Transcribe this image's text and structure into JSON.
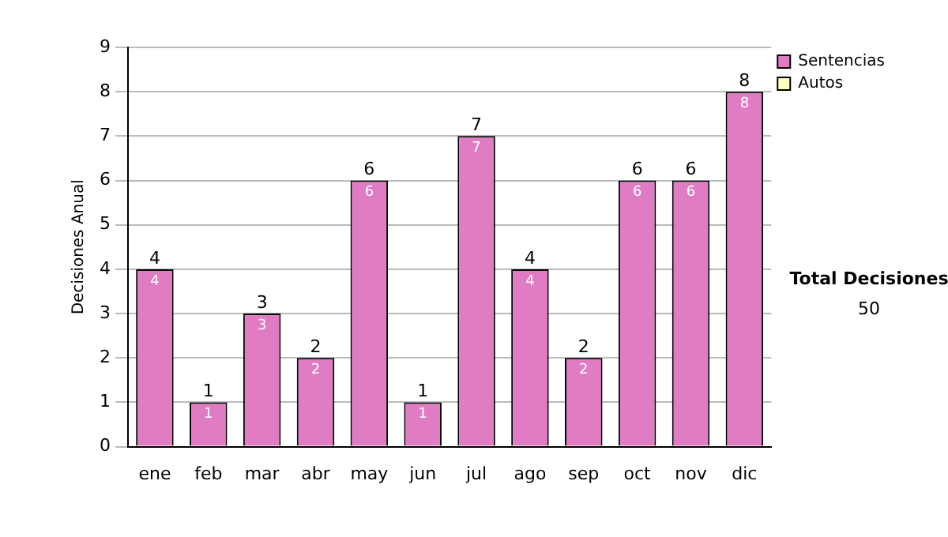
{
  "chart_data": {
    "type": "bar",
    "stacked": true,
    "ylabel": "Decisiones Anual",
    "categories": [
      "ene",
      "feb",
      "mar",
      "abr",
      "may",
      "jun",
      "jul",
      "ago",
      "sep",
      "oct",
      "nov",
      "dic"
    ],
    "series": [
      {
        "name": "Sentencias",
        "color": "#e07cc4",
        "values": [
          4,
          1,
          3,
          2,
          6,
          1,
          7,
          4,
          2,
          6,
          6,
          8
        ],
        "value_labels": [
          "4",
          "1",
          "3",
          "2",
          "6",
          "1",
          "7",
          "4",
          "2",
          "6",
          "6",
          "8"
        ]
      },
      {
        "name": "Autos",
        "color": "#ffffc0",
        "values": [
          0,
          0,
          0,
          0,
          0,
          0,
          0,
          0,
          0,
          0,
          0,
          0
        ]
      }
    ],
    "totals": [
      "4",
      "1",
      "3",
      "2",
      "6",
      "1",
      "7",
      "4",
      "2",
      "6",
      "6",
      "8"
    ],
    "ylim": [
      0,
      9
    ],
    "yticks": [
      0,
      1,
      2,
      3,
      4,
      5,
      6,
      7,
      8,
      9
    ],
    "grid": "y",
    "legend": "right",
    "annotations": [
      "Total Decisiones",
      "50"
    ]
  }
}
